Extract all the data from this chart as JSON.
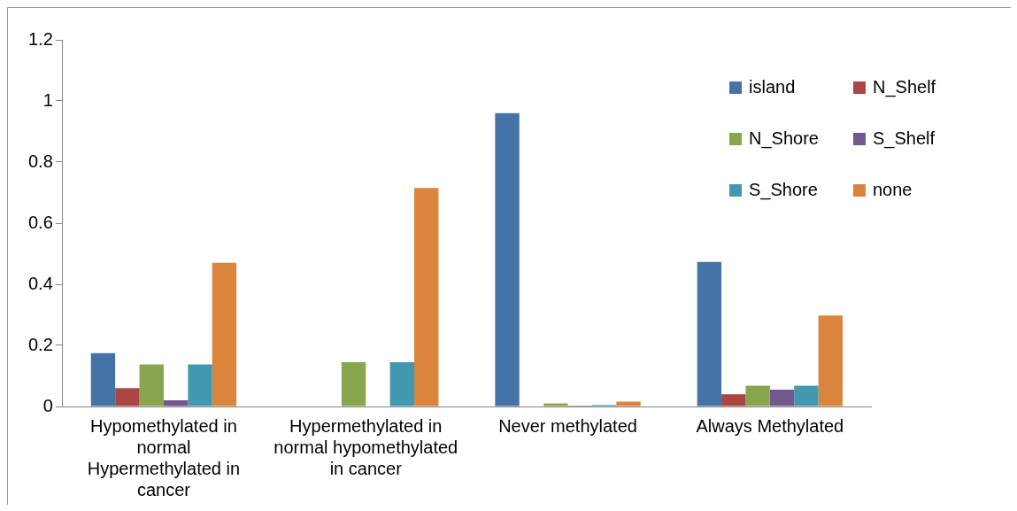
{
  "chart_data": {
    "type": "bar",
    "categories": [
      "Hypomethylated in normal Hypermethylated in cancer",
      "Hypermethylated in normal hypomethylated in cancer",
      "Never methylated",
      "Always Methylated"
    ],
    "series": [
      {
        "name": "island",
        "color": "#4572a7",
        "values": [
          0.175,
          0,
          0.96,
          0.473
        ]
      },
      {
        "name": "N_Shelf",
        "color": "#aa4643",
        "values": [
          0.06,
          0,
          0,
          0.04
        ]
      },
      {
        "name": "N_Shore",
        "color": "#89a54e",
        "values": [
          0.138,
          0.145,
          0.01,
          0.068
        ]
      },
      {
        "name": "S_Shelf",
        "color": "#71588f",
        "values": [
          0.02,
          0,
          0.003,
          0.055
        ]
      },
      {
        "name": "S_Shore",
        "color": "#4198af",
        "values": [
          0.138,
          0.145,
          0.005,
          0.068
        ]
      },
      {
        "name": "none",
        "color": "#db843d",
        "values": [
          0.47,
          0.715,
          0.016,
          0.298
        ]
      }
    ],
    "ylim": [
      0,
      1.2
    ],
    "yticks": [
      0,
      0.2,
      0.4,
      0.6,
      0.8,
      1,
      1.2
    ],
    "grid": false,
    "legend": "top right"
  }
}
